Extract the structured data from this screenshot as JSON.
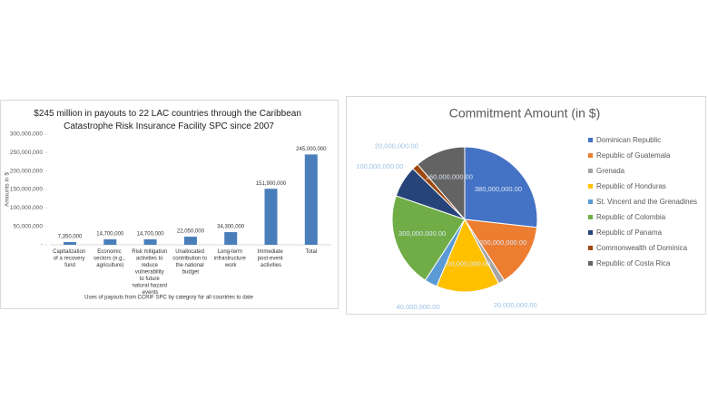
{
  "chart_data": [
    {
      "type": "bar",
      "title": "$245 million in payouts to 22 LAC countries through the Caribbean Catastrophe Risk Insurance Facility SPC since 2007",
      "ylabel": "Amounts in $",
      "xlabel": "Uses of payouts from CCRIF SPC by category for all countries to date",
      "categories": [
        "Capitalization of a recovery fund",
        "Economic sectors (e.g., agriculture)",
        "Risk mitigation activities to reduce vulnerability to future natural hazard events",
        "Unallocated contribution to the national budget",
        "Long-term infrastructure work",
        "Immediate post-event activities",
        "Total"
      ],
      "values": [
        7350000,
        14700000,
        14700000,
        22050000,
        34300000,
        151900000,
        245000000
      ],
      "value_labels": [
        "7,350,000",
        "14,700,000",
        "14,700,000",
        "22,050,000",
        "34,300,000",
        "151,900,000",
        "245,000,000"
      ],
      "color": "#4a7ebb",
      "ylim": [
        0,
        300000000
      ],
      "yticks": [
        {
          "value": 0,
          "label": "-"
        },
        {
          "value": 50000000,
          "label": "50,000,000"
        },
        {
          "value": 100000000,
          "label": "100,000,000"
        },
        {
          "value": 150000000,
          "label": "150,000,000"
        },
        {
          "value": 200000000,
          "label": "200,000,000"
        },
        {
          "value": 250000000,
          "label": "250,000,000"
        },
        {
          "value": 300000000,
          "label": "300,000,000"
        }
      ]
    },
    {
      "type": "pie",
      "title": "Commitment Amount (in $)",
      "categories": [
        "Dominican Republic",
        "Republic of Guatemala",
        "Grenada",
        "Republic of Honduras",
        "St. Vincent and the Grenadines",
        "Republic of Colombia",
        "Republic of Panama",
        "Commonwealth of Dominica",
        "Republic of Costa Rica"
      ],
      "values": [
        380000000,
        200000000,
        20000000,
        200000000,
        40000000,
        300000000,
        100000000,
        20000000,
        160000000
      ],
      "value_labels": [
        "380,000,000.00",
        "200,000,000.00",
        "20,000,000.00",
        "200,000,000.00",
        "40,000,000.00",
        "300,000,000.00",
        "100,000,000.00",
        "20,000,000.00",
        "160,000,000.00"
      ],
      "colors": [
        "#4472c4",
        "#ed7d31",
        "#a5a5a5",
        "#ffc000",
        "#5b9bd5",
        "#70ad47",
        "#264478",
        "#9e480e",
        "#636363"
      ]
    }
  ]
}
